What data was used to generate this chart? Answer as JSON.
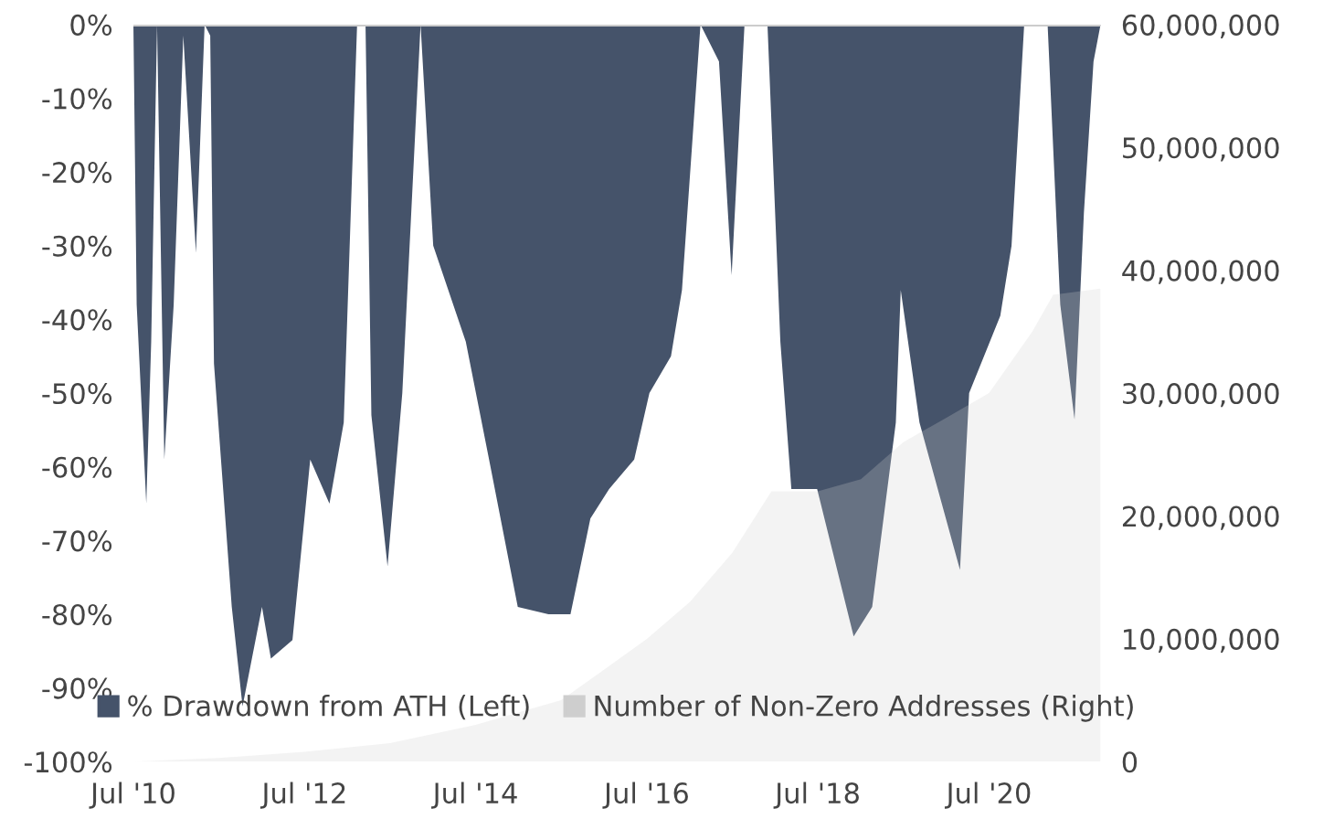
{
  "chart_data": {
    "type": "area",
    "xlim": [
      "2010-07-01",
      "2021-10-20"
    ],
    "xticks": [
      {
        "value": "2010-07-01",
        "label": "Jul '10"
      },
      {
        "value": "2012-07-01",
        "label": "Jul '12"
      },
      {
        "value": "2014-07-01",
        "label": "Jul '14"
      },
      {
        "value": "2016-07-01",
        "label": "Jul '16"
      },
      {
        "value": "2018-07-01",
        "label": "Jul '18"
      },
      {
        "value": "2020-07-01",
        "label": "Jul '20"
      }
    ],
    "ylim": [
      -100,
      0
    ],
    "yticks": [
      {
        "value": 0,
        "label": "0%"
      },
      {
        "value": -10,
        "label": "-10%"
      },
      {
        "value": -20,
        "label": "-20%"
      },
      {
        "value": -30,
        "label": "-30%"
      },
      {
        "value": -40,
        "label": "-40%"
      },
      {
        "value": -50,
        "label": "-50%"
      },
      {
        "value": -60,
        "label": "-60%"
      },
      {
        "value": -70,
        "label": "-70%"
      },
      {
        "value": -80,
        "label": "-80%"
      },
      {
        "value": -90,
        "label": "-90%"
      },
      {
        "value": -100,
        "label": "-100%"
      }
    ],
    "y2lim": [
      0,
      60000000
    ],
    "y2ticks": [
      {
        "value": 0,
        "label": "0"
      },
      {
        "value": 10000000,
        "label": "10,000,000"
      },
      {
        "value": 20000000,
        "label": "20,000,000"
      },
      {
        "value": 30000000,
        "label": "30,000,000"
      },
      {
        "value": 40000000,
        "label": "40,000,000"
      },
      {
        "value": 50000000,
        "label": "50,000,000"
      },
      {
        "value": 60000000,
        "label": "60,000,000"
      }
    ],
    "legend": "bottom",
    "grid": false,
    "series": [
      {
        "name": "% Drawdown from ATH (Left)",
        "color": "#45536a",
        "x": [
          "2010-07-01",
          "2010-07-15",
          "2010-08-25",
          "2010-09-15",
          "2010-10-10",
          "2010-11-10",
          "2010-12-20",
          "2011-01-30",
          "2011-03-25",
          "2011-05-01",
          "2011-05-25",
          "2011-06-10",
          "2011-08-25",
          "2011-10-10",
          "2012-01-01",
          "2012-02-08",
          "2012-05-10",
          "2012-07-25",
          "2012-10-15",
          "2012-12-15",
          "2013-02-10",
          "2013-03-18",
          "2013-04-12",
          "2013-06-20",
          "2013-08-22",
          "2013-11-08",
          "2014-01-01",
          "2014-05-20",
          "2014-08-25",
          "2014-12-28",
          "2015-05-08",
          "2015-08-10",
          "2015-11-03",
          "2016-01-22",
          "2016-05-08",
          "2016-07-12",
          "2016-10-12",
          "2016-11-28",
          "2017-02-15",
          "2017-05-05",
          "2017-06-28",
          "2017-08-22",
          "2017-11-28",
          "2018-01-22",
          "2018-03-10",
          "2018-06-28",
          "2018-12-01",
          "2019-02-18",
          "2019-05-30",
          "2019-06-20",
          "2019-09-08",
          "2019-11-25",
          "2020-02-28",
          "2020-04-07",
          "2020-08-18",
          "2020-10-05",
          "2020-11-28",
          "2021-03-08",
          "2021-05-01",
          "2021-07-01",
          "2021-08-10",
          "2021-09-20",
          "2021-10-20"
        ],
        "values": [
          0,
          -38,
          -65,
          -43,
          0,
          -59,
          -38,
          -1.5,
          -31,
          0,
          -1.5,
          -46,
          -79,
          -92.5,
          -79,
          -86,
          -83.5,
          -59,
          -65,
          -54,
          0,
          0,
          -53,
          -73.5,
          -50,
          0,
          -30,
          -43,
          -58.6,
          -79,
          -80,
          -80,
          -67,
          -63,
          -59,
          -50,
          -45,
          -36,
          0,
          -5,
          -34,
          0,
          0,
          -43,
          -63,
          -63,
          -83,
          -79,
          -54,
          -36,
          -54,
          -63,
          -74,
          -50,
          -39.5,
          -30,
          0,
          0,
          -38,
          -53.6,
          -25.5,
          -5,
          0
        ]
      },
      {
        "name": "Number of Non-Zero Addresses (Right)",
        "color": "#cecece",
        "axis": "y2",
        "x": [
          "2010-07-01",
          "2011-07-01",
          "2012-07-01",
          "2013-07-01",
          "2014-07-01",
          "2015-07-01",
          "2016-01-01",
          "2016-07-01",
          "2017-01-01",
          "2017-07-01",
          "2017-12-15",
          "2018-07-01",
          "2019-01-01",
          "2019-07-01",
          "2020-01-01",
          "2020-07-01",
          "2021-01-01",
          "2021-04-01",
          "2021-10-20"
        ],
        "values": [
          0,
          300000,
          800000,
          1500000,
          3000000,
          5000000,
          7500000,
          10000000,
          13000000,
          17000000,
          22000000,
          22000000,
          23000000,
          26000000,
          28000000,
          30000000,
          35000000,
          38000000,
          38500000
        ]
      }
    ]
  }
}
